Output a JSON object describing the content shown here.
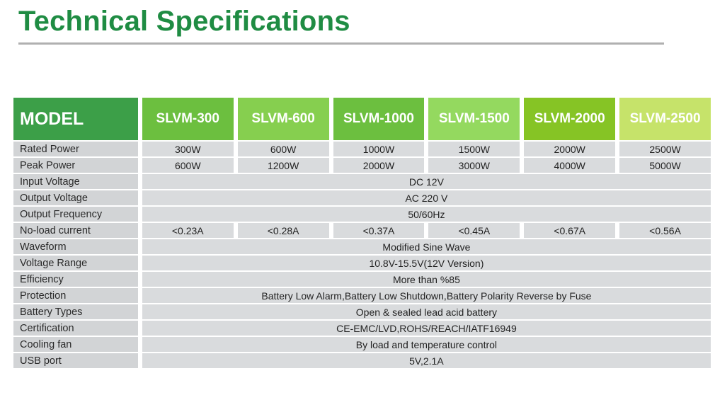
{
  "title": "Technical Specifications",
  "colors": {
    "title": "#1f8c43",
    "model_header": "#3c9f48",
    "model_columns": [
      "#6cbf3f",
      "#86cf4f",
      "#6cbf3f",
      "#94d95f",
      "#86c425",
      "#c6e36a"
    ]
  },
  "header": {
    "label": "MODEL",
    "models": [
      "SLVM-300",
      "SLVM-600",
      "SLVM-1000",
      "SLVM-1500",
      "SLVM-2000",
      "SLVM-2500"
    ]
  },
  "rows": [
    {
      "label": "Rated Power",
      "values": [
        "300W",
        "600W",
        "1000W",
        "1500W",
        "2000W",
        "2500W"
      ]
    },
    {
      "label": "Peak Power",
      "values": [
        "600W",
        "1200W",
        "2000W",
        "3000W",
        "4000W",
        "5000W"
      ]
    },
    {
      "label": "Input Voltage",
      "value": "DC 12V"
    },
    {
      "label": "Output Voltage",
      "value": "AC 220 V"
    },
    {
      "label": "Output Frequency",
      "value": "50/60Hz"
    },
    {
      "label": "No-load current",
      "values": [
        "<0.23A",
        "<0.28A",
        "<0.37A",
        "<0.45A",
        "<0.67A",
        "<0.56A"
      ]
    },
    {
      "label": "Waveform",
      "value": "Modified Sine Wave"
    },
    {
      "label": "Voltage Range",
      "value": "10.8V-15.5V(12V Version)"
    },
    {
      "label": "Efficiency",
      "value": "More than  %85"
    },
    {
      "label": "Protection",
      "value": "Battery Low Alarm,Battery Low Shutdown,Battery Polarity Reverse by Fuse"
    },
    {
      "label": "Battery Types",
      "value": "Open & sealed lead acid battery"
    },
    {
      "label": "Certification",
      "value": "CE-EMC/LVD,ROHS/REACH/IATF16949"
    },
    {
      "label": "Cooling fan",
      "value": "By load and temperature control"
    },
    {
      "label": "USB port",
      "value": "5V,2.1A"
    }
  ]
}
